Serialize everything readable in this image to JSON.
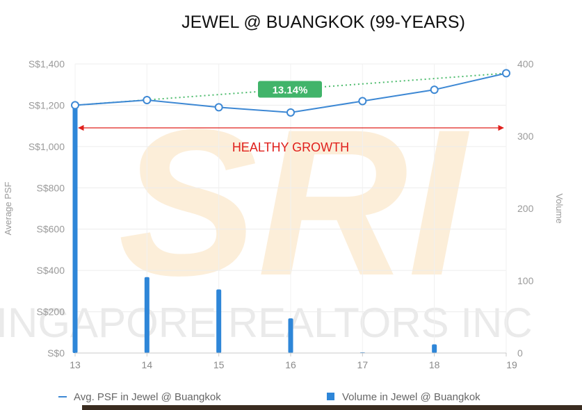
{
  "chart_data": {
    "type": "bar+line",
    "title": "JEWEL @ BUANGKOK (99-YEARS)",
    "categories": [
      "13",
      "14",
      "15",
      "16",
      "17",
      "18",
      "19"
    ],
    "series": [
      {
        "name": "Avg. PSF in Jewel @ Buangkok",
        "type": "line",
        "axis": "left",
        "values": [
          1200,
          1225,
          1190,
          1165,
          1220,
          1275,
          1355
        ]
      },
      {
        "name": "Volume in Jewel @ Buangkok",
        "type": "bar",
        "axis": "right",
        "values": [
          340,
          105,
          88,
          48,
          1,
          12,
          0
        ]
      }
    ],
    "ylabel": "Average PSF",
    "y2label": "Volume",
    "ylim": [
      0,
      1400
    ],
    "y2lim": [
      0,
      400
    ],
    "yticks": [
      "S$0",
      "S$200",
      "S$400",
      "S$600",
      "S$800",
      "S$1,000",
      "S$1,200",
      "S$1,400"
    ],
    "y2ticks": [
      "0",
      "100",
      "200",
      "300",
      "400"
    ],
    "grid": true,
    "legend_position": "bottom",
    "annotations": {
      "trend_badge": "13.14%",
      "growth_label": "HEALTHY GROWTH"
    },
    "colors": {
      "line": "#3d88d4",
      "bar": "#2e86d8",
      "trend": "#4cbb6c",
      "badge": "#41b46a",
      "arrow": "#e0201c"
    }
  },
  "watermark": {
    "logo": "SRI",
    "text": "SINGAPORE REALTORS INC"
  }
}
